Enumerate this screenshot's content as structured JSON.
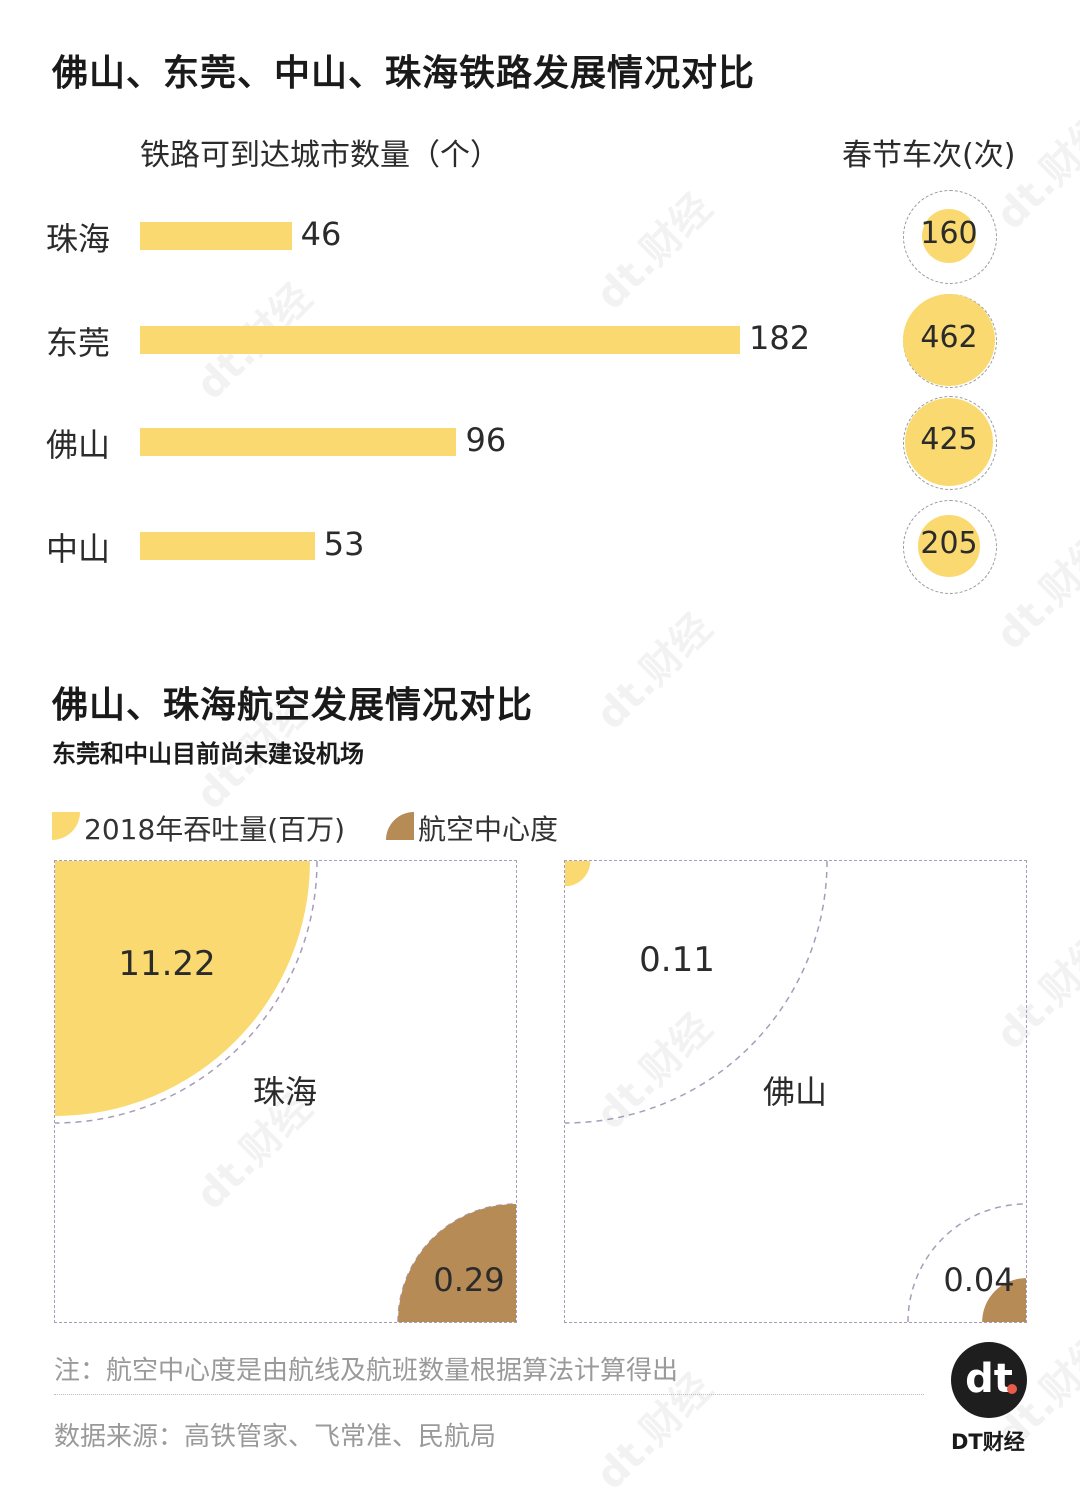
{
  "rail": {
    "title": "佛山、东莞、中山、珠海铁路发展情况对比",
    "bars_header": "铁路可到达城市数量（个）",
    "trains_header": "春节车次(次)"
  },
  "air": {
    "title": "佛山、珠海航空发展情况对比",
    "subtitle": "东莞和中山目前尚未建设机场",
    "legend": [
      {
        "label": "2018年吞吐量(百万)",
        "color": "#FADA70"
      },
      {
        "label": "航空中心度",
        "color": "#B78B55"
      }
    ]
  },
  "chart_data": [
    {
      "type": "bar",
      "orientation": "horizontal",
      "title": "",
      "xlabel": "铁路可到达城市数量（个）",
      "categories": [
        "珠海",
        "东莞",
        "佛山",
        "中山"
      ],
      "values": [
        46,
        182,
        96,
        53
      ]
    },
    {
      "type": "scatter",
      "title": "",
      "xlabel": "春节车次(次)",
      "categories": [
        "珠海",
        "东莞",
        "佛山",
        "中山"
      ],
      "values": [
        160,
        462,
        425,
        205
      ]
    },
    {
      "type": "pie",
      "title": "",
      "categories": [
        "珠海",
        "佛山"
      ],
      "series": [
        {
          "name": "2018年吞吐量(百万)",
          "values": [
            11.22,
            0.11
          ]
        },
        {
          "name": "航空中心度",
          "values": [
            0.29,
            0.04
          ]
        }
      ]
    }
  ],
  "footer": {
    "note": "注：航空中心度是由航线及航班数量根据算法计算得出",
    "source": "数据来源：高铁管家、飞常准、民航局",
    "brand_logo": "dt",
    "brand_name": "DT财经"
  },
  "watermark": "dt.财经",
  "colors": {
    "yellow": "#FADA70",
    "brown": "#B78B55"
  }
}
